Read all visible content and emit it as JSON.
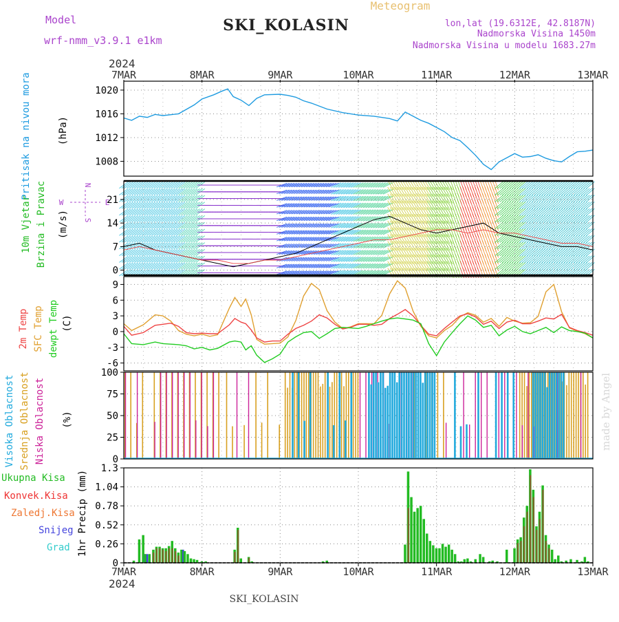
{
  "header": {
    "model_label": "Model",
    "model_name": "wrf-nmm_v3.9.1 e1km",
    "station": "SKI_KOLASIN",
    "title": "Meteogram",
    "coords": "lon,lat (19.6312E, 42.8187N)",
    "elevation": "Nadmorska Visina 1450m",
    "model_elevation": "Nadmorska Visina u modelu 1683.27m",
    "year_top": "2024",
    "year_bottom": "2024",
    "footer_station": "SKI_KOLASIN",
    "watermark": "made by Angel"
  },
  "colors": {
    "pressure": "#1e9be0",
    "wind_label": "#22bb22",
    "temp2m": "#ee4444",
    "sfc": "#e0a030",
    "dewpt": "#22cc22",
    "high_cloud": "#22aadd",
    "mid_cloud": "#d8a020",
    "low_cloud": "#cc2299",
    "total_precip": "#22bb22",
    "conv_precip": "#ee3333",
    "frz_precip": "#ee7733",
    "snow": "#4444dd",
    "graupel": "#33cccc",
    "dir_legend": "#aa44cc",
    "model_text": "#aa44cc"
  },
  "chart_data": [
    {
      "type": "line",
      "name": "pressure",
      "ylabel_1": "Pritisak na nivou mora",
      "ylabel_unit": "(hPa)",
      "ylim": [
        1005.5,
        1021.5
      ],
      "yticks": [
        1008,
        1012,
        1016,
        1020
      ],
      "xticks": [
        "7MAR",
        "8MAR",
        "9MAR",
        "10MAR",
        "11MAR",
        "12MAR",
        "13MAR"
      ],
      "x": [
        0,
        0.1,
        0.2,
        0.3,
        0.4,
        0.5,
        0.7,
        0.9,
        1.0,
        1.15,
        1.25,
        1.33,
        1.4,
        1.5,
        1.6,
        1.7,
        1.8,
        2.0,
        2.1,
        2.2,
        2.3,
        2.4,
        2.6,
        2.8,
        3.0,
        3.2,
        3.4,
        3.5,
        3.6,
        3.8,
        3.9,
        4.0,
        4.1,
        4.2,
        4.3,
        4.4,
        4.5,
        4.6,
        4.7,
        4.8,
        4.9,
        5.0,
        5.1,
        5.2,
        5.3,
        5.4,
        5.5,
        5.6,
        5.7,
        5.8,
        5.9,
        6.0
      ],
      "y": [
        1015.3,
        1014.9,
        1015.6,
        1015.4,
        1015.9,
        1015.7,
        1016.0,
        1017.5,
        1018.5,
        1019.2,
        1019.8,
        1020.2,
        1018.9,
        1018.3,
        1017.4,
        1018.6,
        1019.2,
        1019.3,
        1019.1,
        1018.8,
        1018.2,
        1017.8,
        1016.8,
        1016.2,
        1015.8,
        1015.6,
        1015.2,
        1014.8,
        1016.3,
        1014.9,
        1014.4,
        1013.7,
        1013.0,
        1012.0,
        1011.5,
        1010.3,
        1009.0,
        1007.5,
        1006.6,
        1007.9,
        1008.6,
        1009.3,
        1008.7,
        1008.8,
        1009.1,
        1008.5,
        1008.1,
        1007.9,
        1008.8,
        1009.6,
        1009.7,
        1009.9
      ]
    },
    {
      "type": "line",
      "name": "wind",
      "ylabel_1": "10m Vjetar",
      "ylabel_2": "Brzina i Pravac",
      "ylabel_unit": "(m/s)",
      "dir_legend_top": "N",
      "dir_legend_left": "W",
      "dir_legend_right": "E",
      "dir_legend_bottom": "S",
      "ylim": [
        -1.5,
        26.5
      ],
      "yticks": [
        0,
        7,
        14,
        21
      ],
      "x": [
        0,
        0.2,
        0.4,
        0.6,
        0.8,
        1.0,
        1.2,
        1.4,
        1.6,
        1.8,
        2.0,
        2.2,
        2.4,
        2.6,
        2.8,
        3.0,
        3.2,
        3.4,
        3.6,
        3.8,
        4.0,
        4.2,
        4.4,
        4.6,
        4.8,
        5.0,
        5.2,
        5.4,
        5.6,
        5.8,
        6.0
      ],
      "speed": [
        7,
        8,
        6,
        5,
        4,
        3,
        2,
        1,
        2,
        3,
        4,
        5,
        7,
        9,
        11,
        13,
        15,
        16,
        14,
        12,
        11,
        12,
        13,
        14,
        11,
        10,
        9,
        8,
        7,
        7,
        6
      ],
      "gust": [
        6,
        7,
        6,
        5,
        4,
        3,
        3,
        2,
        2,
        3,
        3,
        4,
        5,
        6,
        7,
        8,
        9,
        9,
        10,
        11,
        12,
        12,
        11,
        12,
        11,
        11,
        10,
        9,
        8,
        8,
        7
      ]
    },
    {
      "type": "line",
      "name": "temperature",
      "ylabel_1": "2m Temp",
      "ylabel_2": "SFC Temp",
      "ylabel_3": "dewpt Temp",
      "ylabel_unit": "(C)",
      "ylim": [
        -7.5,
        10.5
      ],
      "yticks": [
        -6,
        -3,
        0,
        3,
        6,
        9
      ],
      "x": [
        0,
        0.1,
        0.25,
        0.4,
        0.5,
        0.6,
        0.7,
        0.8,
        0.9,
        1.0,
        1.1,
        1.2,
        1.35,
        1.42,
        1.5,
        1.56,
        1.63,
        1.7,
        1.8,
        1.9,
        2.0,
        2.1,
        2.2,
        2.3,
        2.4,
        2.5,
        2.6,
        2.7,
        2.8,
        2.9,
        3.0,
        3.1,
        3.2,
        3.3,
        3.4,
        3.5,
        3.6,
        3.7,
        3.8,
        3.9,
        4.0,
        4.1,
        4.2,
        4.3,
        4.4,
        4.5,
        4.6,
        4.7,
        4.8,
        4.9,
        5.0,
        5.1,
        5.2,
        5.3,
        5.4,
        5.5,
        5.6,
        5.7,
        5.8,
        5.9,
        6.0
      ],
      "t2m": [
        1.0,
        -0.7,
        -0.2,
        1.2,
        1.4,
        1.6,
        1.0,
        -0.2,
        -0.4,
        -0.3,
        -0.4,
        -0.4,
        1.3,
        2.5,
        1.8,
        1.5,
        0.3,
        -1.2,
        -2.0,
        -1.8,
        -1.8,
        -0.5,
        0.6,
        1.2,
        2.0,
        3.2,
        2.6,
        1.4,
        0.5,
        0.8,
        1.4,
        1.4,
        1.2,
        1.4,
        2.5,
        3.3,
        4.2,
        3.0,
        1.2,
        -0.5,
        -0.8,
        0.6,
        1.8,
        3.0,
        3.4,
        2.8,
        1.4,
        2.0,
        0.6,
        1.8,
        2.2,
        1.5,
        1.5,
        2.0,
        2.6,
        2.4,
        3.3,
        0.8,
        0.2,
        -0.2,
        -0.7
      ],
      "sfc": [
        1.5,
        0.2,
        1.3,
        3.2,
        3.0,
        2.0,
        0.2,
        -0.5,
        -0.8,
        -0.5,
        -0.9,
        -0.6,
        4.5,
        6.5,
        4.8,
        6.2,
        3.2,
        -1.5,
        -2.4,
        -2.3,
        -2.2,
        -1.0,
        2.1,
        6.8,
        9.2,
        8.0,
        4.0,
        1.8,
        0.6,
        0.9,
        1.5,
        1.5,
        1.5,
        3.1,
        7.2,
        9.7,
        8.3,
        3.9,
        1.0,
        -0.8,
        -1.2,
        0.2,
        1.2,
        2.8,
        3.6,
        3.1,
        1.8,
        2.5,
        1.0,
        2.7,
        2.0,
        1.6,
        1.7,
        2.9,
        7.6,
        9.0,
        3.8,
        0.7,
        0.1,
        -0.4,
        -1.2
      ],
      "dewpt": [
        -0.4,
        -2.3,
        -2.5,
        -2.0,
        -2.3,
        -2.4,
        -2.5,
        -2.7,
        -3.3,
        -3.0,
        -3.5,
        -3.2,
        -2.0,
        -1.8,
        -2.0,
        -3.5,
        -2.7,
        -4.5,
        -5.9,
        -5.2,
        -4.3,
        -2.0,
        -1.0,
        -0.2,
        0.0,
        -1.3,
        -0.4,
        0.6,
        0.8,
        0.7,
        0.6,
        1.0,
        1.5,
        2.0,
        2.4,
        2.6,
        2.4,
        2.2,
        1.5,
        -2.3,
        -4.6,
        -2.0,
        -0.2,
        1.5,
        3.0,
        2.2,
        0.8,
        1.2,
        -0.8,
        0.3,
        1.0,
        0.0,
        -0.4,
        0.2,
        0.8,
        -0.2,
        0.9,
        0.2,
        0.0,
        -0.3,
        -1.2
      ]
    },
    {
      "type": "bar",
      "name": "cloud_cover",
      "ylabel_1": "Visoka Oblacnost",
      "ylabel_2": "Srednja Oblacnost",
      "ylabel_3": "Niska Oblacnost",
      "ylabel_unit": "(%)",
      "ylim": [
        0,
        100
      ],
      "yticks": [
        0,
        25,
        50,
        75,
        100
      ],
      "high_segments": [
        [
          2.05,
          2.95,
          "sparse"
        ],
        [
          3.1,
          3.95,
          "dense"
        ],
        [
          4.2,
          5.0,
          "sparse"
        ],
        [
          5.2,
          5.6,
          "dense"
        ]
      ],
      "mid_segments": [
        [
          0.0,
          1.2,
          "sparse"
        ],
        [
          1.3,
          2.0,
          "sparse"
        ],
        [
          2.05,
          3.0,
          "dense"
        ],
        [
          3.7,
          4.1,
          "sparse"
        ],
        [
          5.05,
          5.95,
          "dense"
        ]
      ],
      "low_segments": [
        [
          0.0,
          1.2,
          "sparse"
        ],
        [
          1.2,
          1.6,
          "sparse"
        ],
        [
          3.0,
          3.7,
          "sparse"
        ],
        [
          4.1,
          4.9,
          "sparse"
        ],
        [
          5.0,
          5.9,
          "sparse"
        ]
      ]
    },
    {
      "type": "bar",
      "name": "precipitation",
      "ylabel_1": "1hr Precip",
      "ylabel_unit": "(mm)",
      "legend": [
        "Ukupna Kisa",
        "Konvek.Kisa",
        "Zaledj.Kisa",
        "Snijeg",
        "Grad"
      ],
      "ylim": [
        0,
        1.3
      ],
      "yticks": [
        0,
        0.26,
        0.52,
        0.78,
        1.04,
        1.3
      ],
      "x": [
        0.13,
        0.2,
        0.25,
        0.28,
        0.33,
        0.38,
        0.42,
        0.46,
        0.5,
        0.54,
        0.58,
        0.62,
        0.66,
        0.7,
        0.74,
        0.78,
        0.82,
        0.86,
        0.9,
        0.94,
        1.0,
        1.05,
        1.42,
        1.46,
        1.5,
        1.6,
        1.64,
        2.55,
        2.6,
        3.6,
        3.64,
        3.68,
        3.72,
        3.76,
        3.8,
        3.84,
        3.88,
        3.92,
        3.96,
        4.0,
        4.04,
        4.08,
        4.12,
        4.16,
        4.2,
        4.24,
        4.28,
        4.32,
        4.36,
        4.4,
        4.44,
        4.5,
        4.56,
        4.6,
        4.68,
        4.72,
        4.78,
        4.9,
        5.0,
        5.04,
        5.08,
        5.12,
        5.16,
        5.2,
        5.24,
        5.28,
        5.32,
        5.36,
        5.4,
        5.44,
        5.48,
        5.52,
        5.56,
        5.6,
        5.66,
        5.72,
        5.8,
        5.86,
        5.9,
        5.94
      ],
      "total": [
        0.03,
        0.32,
        0.38,
        0.12,
        0.12,
        0.18,
        0.22,
        0.22,
        0.2,
        0.2,
        0.23,
        0.3,
        0.2,
        0.14,
        0.18,
        0.16,
        0.12,
        0.06,
        0.05,
        0.04,
        0.02,
        0.02,
        0.18,
        0.48,
        0.06,
        0.08,
        0.02,
        0.02,
        0.03,
        0.25,
        1.25,
        0.9,
        0.7,
        0.75,
        0.78,
        0.6,
        0.4,
        0.3,
        0.24,
        0.2,
        0.2,
        0.26,
        0.22,
        0.25,
        0.18,
        0.12,
        0.02,
        0.02,
        0.05,
        0.06,
        0.02,
        0.05,
        0.12,
        0.08,
        0.02,
        0.03,
        0.02,
        0.18,
        0.2,
        0.32,
        0.35,
        0.62,
        0.78,
        1.28,
        1.0,
        0.5,
        0.7,
        1.06,
        0.38,
        0.25,
        0.18,
        0.05,
        0.1,
        0.02,
        0.03,
        0.05,
        0.04,
        0.02,
        0.08,
        0.02
      ],
      "conv": [
        0,
        0,
        0,
        0,
        0,
        0.14,
        0.2,
        0.2,
        0.18,
        0.16,
        0.2,
        0.2,
        0.16,
        0.1,
        0,
        0,
        0,
        0,
        0,
        0,
        0,
        0,
        0.15,
        0.45,
        0,
        0.07,
        0,
        0,
        0,
        0,
        0.75,
        0,
        0,
        0,
        0,
        0,
        0,
        0,
        0,
        0,
        0,
        0,
        0,
        0,
        0,
        0,
        0,
        0,
        0,
        0,
        0,
        0,
        0,
        0,
        0,
        0,
        0,
        0,
        0,
        0.27,
        0.3,
        0.5,
        0.7,
        1.2,
        0.9,
        0.45,
        0.6,
        1.0,
        0.3,
        0.2,
        0,
        0,
        0,
        0,
        0,
        0,
        0,
        0,
        0,
        0
      ],
      "snow": [
        0,
        0,
        0.12,
        0.12,
        0,
        0,
        0,
        0,
        0,
        0,
        0,
        0,
        0,
        0,
        0.18,
        0,
        0,
        0,
        0,
        0,
        0,
        0,
        0,
        0,
        0,
        0,
        0,
        0,
        0,
        0,
        0,
        0,
        0,
        0,
        0,
        0,
        0,
        0,
        0,
        0,
        0,
        0,
        0,
        0,
        0,
        0,
        0,
        0,
        0,
        0,
        0,
        0,
        0,
        0,
        0,
        0,
        0,
        0,
        0,
        0,
        0,
        0,
        0,
        0,
        0,
        0,
        0,
        0,
        0,
        0,
        0,
        0,
        0,
        0,
        0,
        0,
        0,
        0,
        0,
        0
      ],
      "graupel": [
        0,
        0,
        0,
        0,
        0,
        0,
        0,
        0,
        0,
        0,
        0,
        0,
        0,
        0,
        0,
        0,
        0,
        0,
        0,
        0,
        0,
        0,
        0,
        0,
        0,
        0,
        0,
        0,
        0,
        0,
        0,
        0,
        0,
        0,
        0,
        0,
        0,
        0,
        0,
        0,
        0,
        0,
        0,
        0,
        0,
        0,
        0,
        0,
        0,
        0,
        0,
        0,
        0,
        0,
        0,
        0,
        0,
        0,
        0,
        0,
        0,
        0,
        0,
        0,
        0,
        0,
        0,
        0,
        0,
        0,
        0,
        0,
        0,
        0,
        0,
        0,
        0,
        0,
        0,
        0
      ],
      "xticks_bottom": [
        "7MAR",
        "8MAR",
        "9MAR",
        "10MAR",
        "11MAR",
        "12MAR",
        "13MAR"
      ]
    }
  ]
}
